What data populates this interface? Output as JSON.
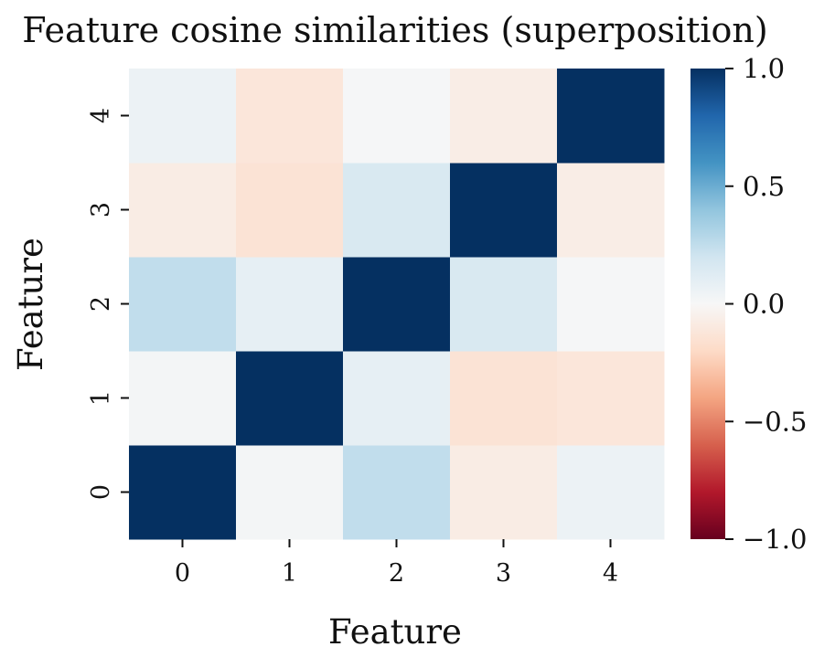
{
  "chart_data": {
    "type": "heatmap",
    "title": "Feature cosine similarities (superposition)",
    "xlabel": "Feature",
    "ylabel": "Feature",
    "x_categories": [
      "0",
      "1",
      "2",
      "3",
      "4"
    ],
    "y_categories": [
      "0",
      "1",
      "2",
      "3",
      "4"
    ],
    "values": [
      [
        1.0,
        0.02,
        0.25,
        -0.08,
        0.06
      ],
      [
        0.02,
        1.0,
        0.09,
        -0.14,
        -0.12
      ],
      [
        0.25,
        0.09,
        1.0,
        0.16,
        0.01
      ],
      [
        -0.08,
        -0.14,
        0.16,
        1.0,
        -0.07
      ],
      [
        0.06,
        -0.12,
        0.01,
        -0.07,
        1.0
      ]
    ],
    "colormap": "RdBu",
    "vmin": -1.0,
    "vmax": 1.0,
    "colorbar_ticks": [
      1.0,
      0.5,
      0.0,
      -0.5,
      -1.0
    ],
    "colorbar_tick_labels": [
      "1.0",
      "0.5",
      "0.0",
      "−0.5",
      "−1.0"
    ],
    "grid": false
  }
}
